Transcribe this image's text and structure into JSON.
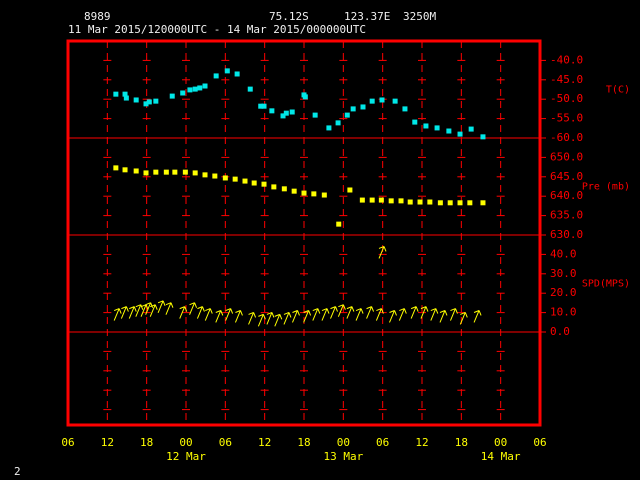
{
  "chart_data": {
    "type": "meteogram",
    "header": {
      "station": "8989",
      "lat": "75.12S",
      "lon": "123.37E",
      "elevation": "3250M",
      "period": "11 Mar 2015/120000UTC - 14 Mar 2015/000000UTC"
    },
    "page_number": "2",
    "xlim": [
      0,
      72
    ],
    "xticks": [
      {
        "value": 0,
        "label": "06"
      },
      {
        "value": 6,
        "label": "12"
      },
      {
        "value": 12,
        "label": "18"
      },
      {
        "value": 18,
        "label": "00"
      },
      {
        "value": 24,
        "label": "06"
      },
      {
        "value": 30,
        "label": "12"
      },
      {
        "value": 36,
        "label": "18"
      },
      {
        "value": 42,
        "label": "00"
      },
      {
        "value": 48,
        "label": "06"
      },
      {
        "value": 54,
        "label": "12"
      },
      {
        "value": 60,
        "label": "18"
      },
      {
        "value": 66,
        "label": "00"
      },
      {
        "value": 72,
        "label": "06"
      }
    ],
    "xdates": [
      {
        "value": 18,
        "label": "12 Mar"
      },
      {
        "value": 42,
        "label": "13 Mar"
      },
      {
        "value": 66,
        "label": "14 Mar"
      }
    ],
    "panels": [
      {
        "type": "scatter",
        "ylabel": "T(C)",
        "color": "#00e8e8",
        "ylim": [
          -60,
          -35
        ],
        "yticks": [
          {
            "value": -60,
            "label": "-60.0"
          },
          {
            "value": -55,
            "label": "-55.0"
          },
          {
            "value": -50,
            "label": "-50.0"
          },
          {
            "value": -45,
            "label": "-45.0"
          },
          {
            "value": -40,
            "label": "-40.0"
          }
        ],
        "x": [
          7.3,
          8.7,
          8.9,
          10.4,
          11.9,
          12.4,
          13.4,
          15.9,
          17.5,
          18.6,
          19.4,
          20.1,
          20.9,
          22.6,
          24.3,
          25.8,
          27.8,
          29.4,
          29.9,
          31.1,
          32.8,
          33.3,
          34.2,
          36.0,
          36.2,
          37.7,
          39.8,
          41.2,
          42.6,
          43.5,
          45.0,
          46.4,
          47.9,
          49.9,
          51.4,
          52.9,
          54.6,
          56.3,
          58.1,
          59.8,
          61.5,
          63.3
        ],
        "values": [
          -48.7,
          -48.7,
          -49.7,
          -50.2,
          -51.2,
          -50.7,
          -50.5,
          -49.2,
          -48.4,
          -47.6,
          -47.4,
          -47.1,
          -46.6,
          -44.0,
          -42.7,
          -43.5,
          -47.4,
          -51.8,
          -51.8,
          -53.0,
          -54.3,
          -53.6,
          -53.3,
          -48.9,
          -49.4,
          -54.1,
          -57.4,
          -56.1,
          -54.1,
          -52.5,
          -52.0,
          -50.5,
          -50.2,
          -50.5,
          -52.5,
          -55.9,
          -56.9,
          -57.4,
          -58.2,
          -59.0,
          -57.7,
          -59.7
        ]
      },
      {
        "type": "scatter",
        "ylabel": "Pre (mb)",
        "color": "#ffff00",
        "ylim": [
          630,
          655
        ],
        "yticks": [
          {
            "value": 630,
            "label": "630.0"
          },
          {
            "value": 635,
            "label": "635.0"
          },
          {
            "value": 640,
            "label": "640.0"
          },
          {
            "value": 645,
            "label": "645.0"
          },
          {
            "value": 650,
            "label": "650.0"
          }
        ],
        "x": [
          7.3,
          8.7,
          10.4,
          11.9,
          13.4,
          15.0,
          16.3,
          17.9,
          19.4,
          20.9,
          22.4,
          24.0,
          25.5,
          27.0,
          28.4,
          29.9,
          31.4,
          33.0,
          34.5,
          36.0,
          37.5,
          39.1,
          41.3,
          43.0,
          44.9,
          46.4,
          47.8,
          49.3,
          50.8,
          52.2,
          53.7,
          55.2,
          56.8,
          58.3,
          59.8,
          61.3,
          63.3
        ],
        "values": [
          647.3,
          646.8,
          646.5,
          646.0,
          646.2,
          646.2,
          646.2,
          646.2,
          646.0,
          645.5,
          645.2,
          644.7,
          644.4,
          643.9,
          643.4,
          643.1,
          642.4,
          641.9,
          641.3,
          640.8,
          640.6,
          640.3,
          632.8,
          641.6,
          639.0,
          639.0,
          639.0,
          638.8,
          638.8,
          638.5,
          638.5,
          638.5,
          638.3,
          638.3,
          638.3,
          638.3,
          638.3
        ]
      },
      {
        "type": "vector",
        "ylabel": "SPD(MPS)",
        "color": "#ffff00",
        "ylim": [
          0,
          50
        ],
        "yticks": [
          {
            "value": 0,
            "label": "0.0"
          },
          {
            "value": 10,
            "label": "10.0"
          },
          {
            "value": 20,
            "label": "20.0"
          },
          {
            "value": 30,
            "label": "30.0"
          },
          {
            "value": 40,
            "label": "40.0"
          }
        ],
        "x": [
          7.5,
          8.6,
          9.8,
          10.8,
          11.6,
          12.3,
          13.0,
          14.2,
          15.4,
          17.5,
          19.0,
          20.2,
          21.4,
          23.0,
          24.5,
          26.0,
          28.0,
          29.5,
          30.8,
          32.0,
          33.4,
          34.7,
          36.4,
          37.8,
          39.2,
          40.5,
          41.7,
          43.0,
          44.4,
          46.0,
          47.5,
          47.9,
          49.5,
          51.0,
          52.8,
          54.3,
          55.8,
          57.2,
          58.8,
          60.3,
          62.4
        ],
        "values": [
          9,
          10,
          10,
          11,
          11,
          12,
          11,
          13,
          12,
          10,
          12,
          10,
          9,
          8,
          9,
          8,
          7,
          6,
          7,
          6,
          7,
          8,
          8,
          9,
          9,
          10,
          11,
          10,
          9,
          10,
          9,
          41,
          8,
          9,
          10,
          10,
          9,
          8,
          9,
          7,
          8
        ]
      }
    ]
  }
}
